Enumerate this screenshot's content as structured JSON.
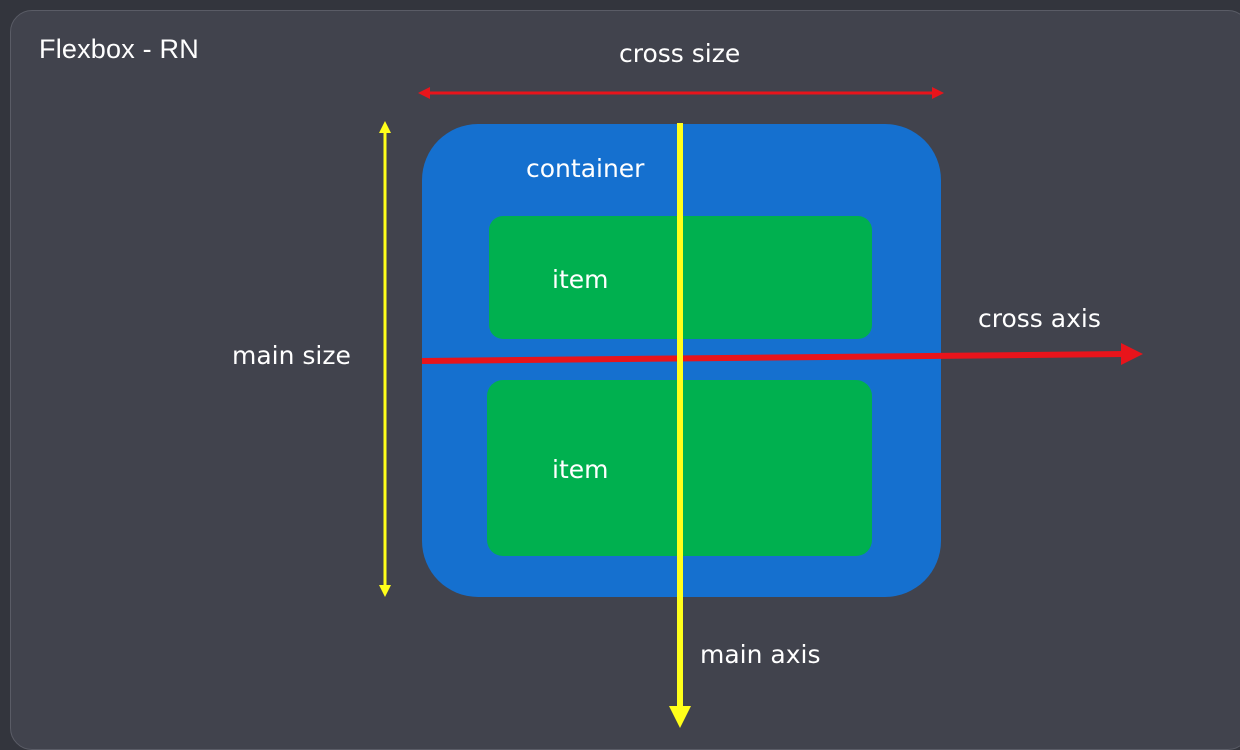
{
  "title": "Flexbox - RN",
  "labels": {
    "cross_size": "cross size",
    "main_size": "main size",
    "cross_axis": "cross axis",
    "main_axis": "main axis",
    "container": "container",
    "item_1": "item",
    "item_2": "item"
  },
  "colors": {
    "background": "#41434d",
    "container": "#1570cf",
    "item": "#00b04f",
    "cross": "#e8141b",
    "main": "#ffff1a",
    "text": "#ffffff"
  }
}
